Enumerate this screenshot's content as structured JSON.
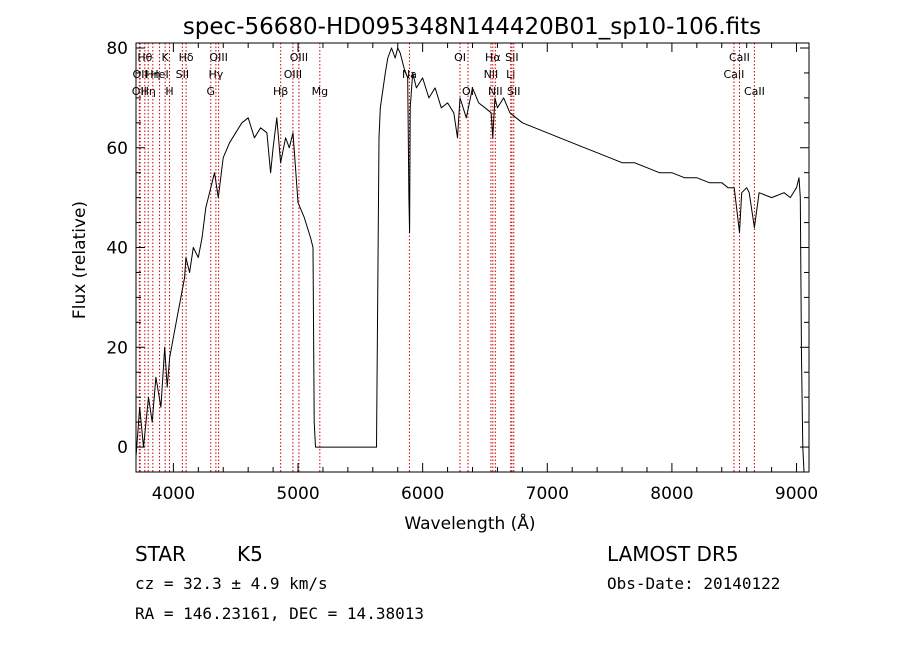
{
  "chart_data": {
    "type": "line",
    "title": "spec-56680-HD095348N144420B01_sp10-106.fits",
    "xlabel": "Wavelength (Å)",
    "ylabel": "Flux (relative)",
    "xlim": [
      3700,
      9100
    ],
    "ylim": [
      -5,
      81
    ],
    "x_ticks": [
      4000,
      5000,
      6000,
      7000,
      8000,
      9000
    ],
    "y_ticks": [
      0,
      20,
      40,
      60,
      80
    ],
    "x_tick_labels": [
      "4000",
      "5000",
      "6000",
      "7000",
      "8000",
      "9000"
    ],
    "y_tick_labels": [
      "0",
      "20",
      "40",
      "60",
      "80"
    ],
    "grid": false,
    "series": [
      {
        "color": "#000000",
        "x": [
          3700,
          3730,
          3760,
          3800,
          3830,
          3860,
          3900,
          3930,
          3950,
          3970,
          4000,
          4030,
          4060,
          4090,
          4100,
          4130,
          4160,
          4200,
          4230,
          4260,
          4300,
          4330,
          4360,
          4400,
          4450,
          4500,
          4550,
          4600,
          4650,
          4700,
          4750,
          4780,
          4800,
          4830,
          4860,
          4900,
          4930,
          4960,
          5000,
          5050,
          5100,
          5120,
          5130,
          5140,
          5150,
          5200,
          5300,
          5400,
          5500,
          5600,
          5630,
          5650,
          5660,
          5700,
          5720,
          5750,
          5780,
          5800,
          5820,
          5850,
          5880,
          5890,
          5895,
          5900,
          5920,
          5950,
          6000,
          6050,
          6100,
          6150,
          6200,
          6250,
          6280,
          6300,
          6350,
          6400,
          6450,
          6500,
          6550,
          6563,
          6580,
          6600,
          6650,
          6700,
          6750,
          6800,
          6900,
          7000,
          7100,
          7200,
          7300,
          7400,
          7500,
          7600,
          7700,
          7800,
          7900,
          8000,
          8100,
          8200,
          8300,
          8400,
          8450,
          8500,
          8542,
          8560,
          8600,
          8620,
          8662,
          8700,
          8800,
          8900,
          8950,
          9000,
          9020,
          9030,
          9040,
          9050,
          9060
        ],
        "y": [
          -2,
          8,
          0,
          10,
          5,
          14,
          8,
          20,
          12,
          18,
          22,
          26,
          30,
          34,
          38,
          35,
          40,
          38,
          42,
          48,
          52,
          55,
          50,
          58,
          61,
          63,
          65,
          66,
          62,
          64,
          63,
          55,
          60,
          66,
          57,
          62,
          60,
          63,
          49,
          46,
          42,
          40,
          5,
          0,
          0,
          0,
          0,
          0,
          0,
          0,
          0,
          62,
          68,
          75,
          78,
          80,
          78,
          80,
          79,
          76,
          74,
          50,
          43,
          68,
          75,
          72,
          74,
          70,
          72,
          68,
          69,
          67,
          62,
          70,
          66,
          72,
          69,
          68,
          67,
          62,
          70,
          68,
          70,
          67,
          66,
          65,
          64,
          63,
          62,
          61,
          60,
          59,
          58,
          57,
          57,
          56,
          55,
          55,
          54,
          54,
          53,
          53,
          52,
          52,
          43,
          51,
          52,
          51,
          44,
          51,
          50,
          51,
          50,
          52,
          54,
          50,
          18,
          0,
          -5
        ]
      }
    ],
    "line_markers": [
      {
        "x": 3727,
        "label": "OII",
        "row": 2
      },
      {
        "x": 3733,
        "label": "OII",
        "row": 1
      },
      {
        "x": 3771,
        "label": "Hθ",
        "row": 0
      },
      {
        "x": 3798,
        "label": "Hη",
        "row": 2
      },
      {
        "x": 3835,
        "label": "Hη",
        "row": 1
      },
      {
        "x": 3889,
        "label": "HeI",
        "row": 1
      },
      {
        "x": 3934,
        "label": "K",
        "row": 0
      },
      {
        "x": 3969,
        "label": "H",
        "row": 2
      },
      {
        "x": 4072,
        "label": "SII",
        "row": 1
      },
      {
        "x": 4102,
        "label": "Hδ",
        "row": 0
      },
      {
        "x": 4300,
        "label": "G",
        "row": 2
      },
      {
        "x": 4341,
        "label": "Hγ",
        "row": 1
      },
      {
        "x": 4363,
        "label": "OIII",
        "row": 0
      },
      {
        "x": 4861,
        "label": "Hβ",
        "row": 2
      },
      {
        "x": 4959,
        "label": "OIII",
        "row": 1
      },
      {
        "x": 5007,
        "label": "OIII",
        "row": 0
      },
      {
        "x": 5175,
        "label": "Mg",
        "row": 2
      },
      {
        "x": 5894,
        "label": "Na",
        "row": 1
      },
      {
        "x": 6300,
        "label": "OI",
        "row": 0
      },
      {
        "x": 6364,
        "label": "OI",
        "row": 2
      },
      {
        "x": 6548,
        "label": "NII",
        "row": 1
      },
      {
        "x": 6563,
        "label": "Hα",
        "row": 0
      },
      {
        "x": 6583,
        "label": "NII",
        "row": 2
      },
      {
        "x": 6707,
        "label": "Li",
        "row": 1
      },
      {
        "x": 6716,
        "label": "SII",
        "row": 0
      },
      {
        "x": 6731,
        "label": "SII",
        "row": 2
      },
      {
        "x": 8498,
        "label": "CaII",
        "row": 1
      },
      {
        "x": 8542,
        "label": "CaII",
        "row": 0
      },
      {
        "x": 8662,
        "label": "CaII",
        "row": 2
      }
    ]
  },
  "info": {
    "class_label": "STAR",
    "subclass": "K5",
    "survey": "LAMOST DR5",
    "redshift_line": "cz = 32.3 ± 4.9 km/s",
    "obs_date": "Obs-Date: 20140122",
    "coords": "RA = 146.23161, DEC =  14.38013"
  },
  "colors": {
    "spectrum": "#000000",
    "line_marker": "#cc0000",
    "axes": "#000000"
  }
}
